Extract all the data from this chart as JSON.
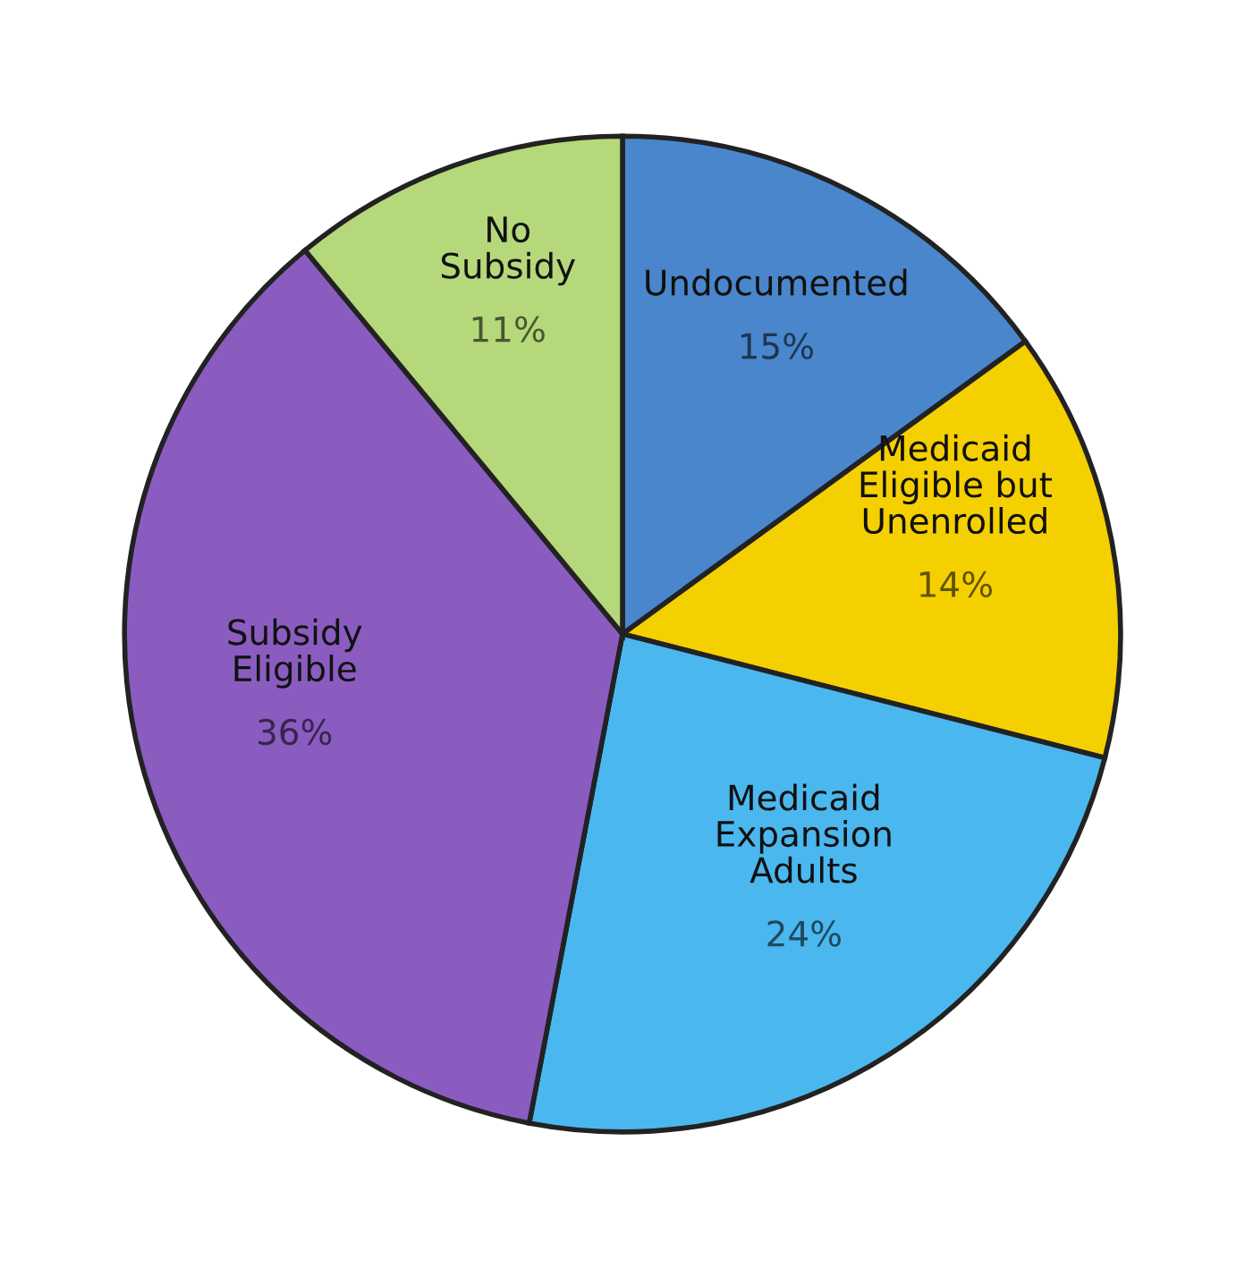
{
  "chart_data": {
    "type": "pie",
    "categories": [
      "Undocumented",
      "Medicaid\nEligible but\nUnenrolled",
      "Medicaid\nExpansion\nAdults",
      "Subsidy\nEligible",
      "No\nSubsidy"
    ],
    "values": [
      15,
      14,
      24,
      36,
      11
    ],
    "value_labels": [
      "15%",
      "14%",
      "24%",
      "36%",
      "11%"
    ],
    "colors": [
      "#4a86cc",
      "#f5d000",
      "#4ab8ee",
      "#8a5cc0",
      "#b5d87a"
    ]
  }
}
